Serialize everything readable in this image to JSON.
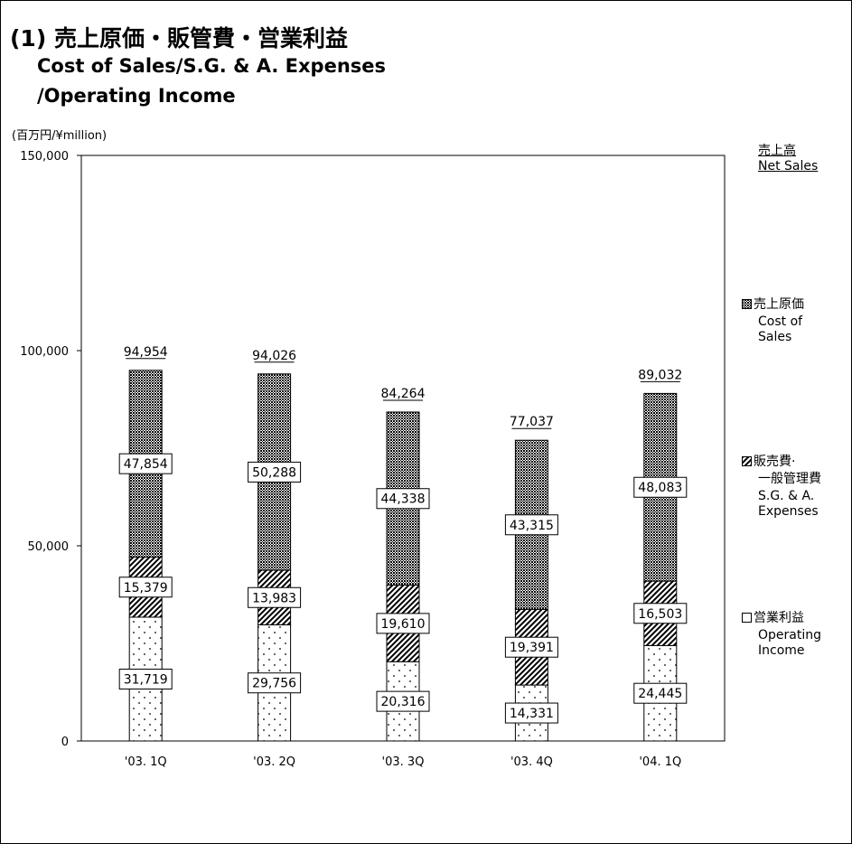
{
  "title": {
    "line1": "(1) 売上原価・販管費・営業利益",
    "line2": "Cost of Sales/S.G. & A. Expenses",
    "line3": "/Operating Income"
  },
  "unit_label": "(百万円/¥million)",
  "legend": {
    "net_sales_jp": "売上高",
    "net_sales_en": "Net Sales",
    "cost_jp": "売上原価",
    "cost_en1": "Cost of",
    "cost_en2": "Sales",
    "sga_jp1": "販売費·",
    "sga_jp2": "一般管理費",
    "sga_en1": "S.G. & A.",
    "sga_en2": "Expenses",
    "op_jp": "営業利益",
    "op_en1": "Operating",
    "op_en2": "Income"
  },
  "colors": {
    "axis": "#000000",
    "bar_stroke": "#000000",
    "background": "#ffffff"
  },
  "chart_data": {
    "type": "bar",
    "stacked": true,
    "categories": [
      "'03. 1Q",
      "'03. 2Q",
      "'03. 3Q",
      "'03. 4Q",
      "'04. 1Q"
    ],
    "series": [
      {
        "name": "営業利益 Operating Income",
        "values": [
          31719,
          29756,
          20316,
          14331,
          24445
        ],
        "pattern": "dots"
      },
      {
        "name": "販売費·一般管理費 S.G. & A. Expenses",
        "values": [
          15379,
          13983,
          19610,
          19391,
          16503
        ],
        "pattern": "diagonal"
      },
      {
        "name": "売上原価 Cost of Sales",
        "values": [
          47854,
          50288,
          44338,
          43315,
          48083
        ],
        "pattern": "crosshatch"
      }
    ],
    "totals": [
      94954,
      94026,
      84264,
      77037,
      89032
    ],
    "y_ticks": [
      "0",
      "50,000",
      "100,000",
      "150,000"
    ],
    "ylim": [
      0,
      150000
    ],
    "grid": false,
    "legend_position": "right"
  }
}
